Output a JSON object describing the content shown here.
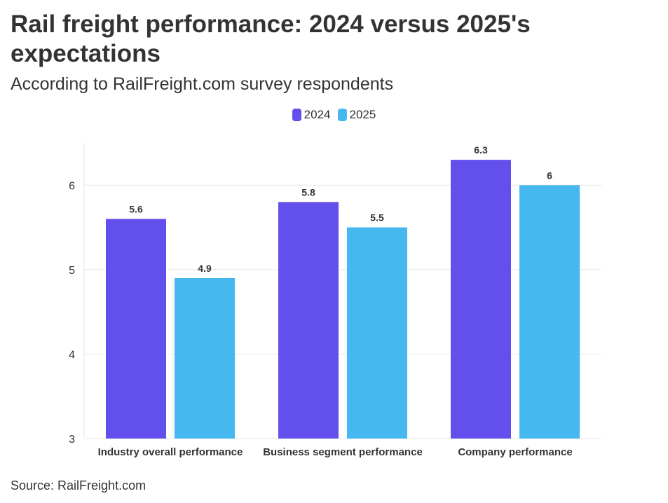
{
  "chart_data": {
    "type": "bar",
    "title": "Rail freight performance: 2024 versus 2025's expectations",
    "subtitle": "According to RailFreight.com survey respondents",
    "source": "Source: RailFreight.com",
    "categories": [
      "Industry overall performance",
      "Business segment performance",
      "Company performance"
    ],
    "series": [
      {
        "name": "2024",
        "values": [
          5.6,
          5.8,
          6.3
        ],
        "color": "#634FEB"
      },
      {
        "name": "2025",
        "values": [
          4.9,
          5.5,
          6
        ],
        "color": "#45B8F0"
      }
    ],
    "ylim": [
      3,
      6.5
    ],
    "yticks": [
      3,
      4,
      5,
      6
    ],
    "grid": true,
    "legend_position": "top-center",
    "data_labels": true
  }
}
